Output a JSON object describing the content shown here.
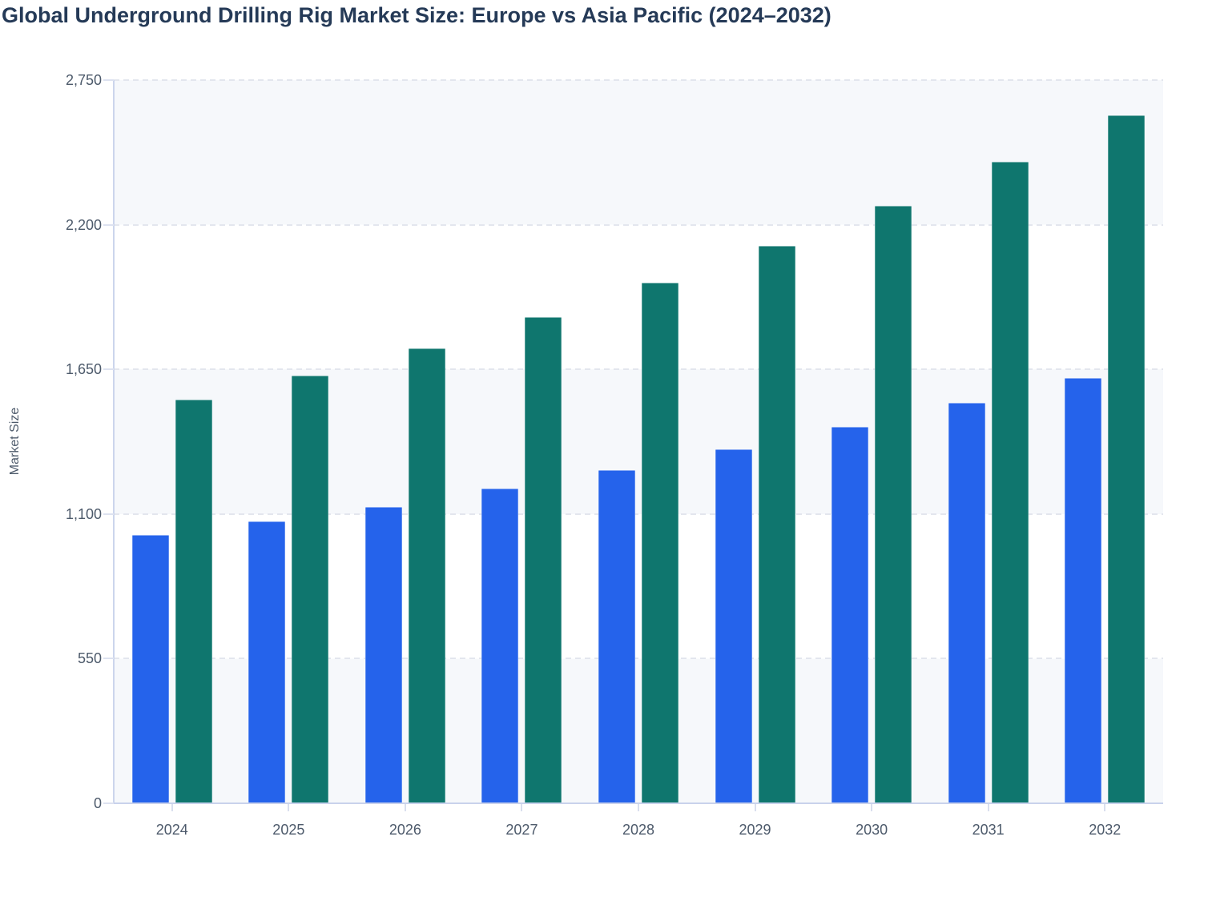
{
  "chart_data": {
    "type": "bar",
    "title": "Global Underground Drilling Rig Market Size: Europe vs Asia Pacific (2024–2032)",
    "xlabel": "",
    "ylabel": "Market Size",
    "categories": [
      "2024",
      "2025",
      "2026",
      "2027",
      "2028",
      "2029",
      "2030",
      "2031",
      "2032"
    ],
    "series": [
      {
        "name": "Europe",
        "color": "#2563eb",
        "values": [
          1020,
          1072,
          1128,
          1197,
          1268,
          1347,
          1431,
          1522,
          1618
        ]
      },
      {
        "name": "Asia Pacific",
        "color": "#0f766e",
        "values": [
          1535,
          1627,
          1729,
          1849,
          1980,
          2121,
          2273,
          2440,
          2617
        ]
      }
    ],
    "ylim": [
      0,
      2750
    ],
    "yticks": [
      0,
      550,
      1100,
      1650,
      2200,
      2750
    ],
    "ytick_labels": [
      "0",
      "550",
      "1,100",
      "1,650",
      "2,200",
      "2,750"
    ],
    "grid": "horizontal dashed gridlines at each y tick",
    "plot_bands": "alternating light #f6f8fb / white horizontal bands between gridlines",
    "legend": "none"
  },
  "colors": {
    "title_text": "#253a57",
    "tick_text": "#4d5a6b",
    "axis_line": "#ccd5ec",
    "grid_line": "#e3e6ee",
    "band_fill": "#f6f8fb"
  }
}
